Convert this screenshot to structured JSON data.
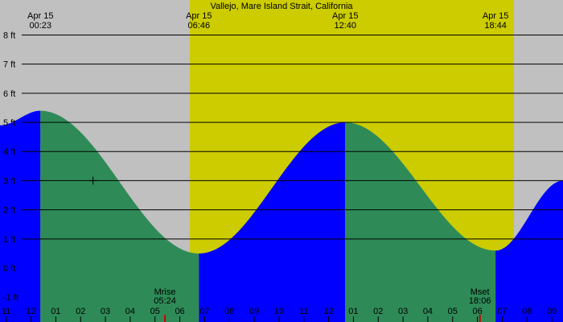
{
  "colors": {
    "night": "#c0c0c0",
    "day": "#cccc00",
    "rising": "#0000ff",
    "falling": "#2e8b57",
    "gridline": "#000000",
    "moon_marker": "#cc0000"
  },
  "chart_data": {
    "type": "area",
    "title": "Vallejo, Mare Island Strait, California",
    "y_unit": "ft",
    "ylim": [
      -1.85,
      9.2
    ],
    "xlim": [
      -1.25,
      21.45
    ],
    "yticks": [
      8,
      7,
      6,
      5,
      4,
      3,
      2,
      1,
      0,
      -1
    ],
    "ytick_labels": [
      "8 ft",
      "7 ft",
      "6 ft",
      "5 ft",
      "4 ft",
      "3 ft",
      "2 ft",
      "1 ft",
      "0 ft",
      "-1 ft"
    ],
    "grid": true,
    "extremes": [
      {
        "type": "high",
        "time": "00:23",
        "hour": 0.38,
        "height": 5.4
      },
      {
        "type": "low",
        "time": "06:46",
        "hour": 6.77,
        "height": 0.5
      },
      {
        "type": "high",
        "time": "12:40",
        "hour": 12.67,
        "height": 5.0
      },
      {
        "type": "low",
        "time": "18:44",
        "hour": 18.73,
        "height": 0.6
      }
    ],
    "series_before": {
      "hour": -1.25,
      "height": 4.9
    },
    "series_after": {
      "hour": 21.45,
      "height": 3.0
    },
    "top_labels": [
      {
        "date": "Apr 15",
        "time": "00:23",
        "hour": 0.38
      },
      {
        "date": "Apr 15",
        "time": "06:46",
        "hour": 6.77
      },
      {
        "date": "Apr 15",
        "time": "12:40",
        "hour": 12.67
      },
      {
        "date": "Apr 15",
        "time": "18:44",
        "hour": 18.73
      }
    ],
    "daylight": {
      "sunrise_hour": 6.4,
      "sunset_hour": 19.47
    },
    "x_tick_labels": [
      "11",
      "12",
      "01",
      "02",
      "03",
      "04",
      "05",
      "06",
      "07",
      "08",
      "09",
      "10",
      "11",
      "12",
      "01",
      "02",
      "03",
      "04",
      "05",
      "06",
      "07",
      "08",
      "09"
    ],
    "x_tick_hours": [
      -1,
      0,
      1,
      2,
      3,
      4,
      5,
      6,
      7,
      8,
      9,
      10,
      11,
      12,
      13,
      14,
      15,
      16,
      17,
      18,
      19,
      20,
      21
    ],
    "moon_events": [
      {
        "label": "Mrise",
        "time": "05:24",
        "hour": 5.4
      },
      {
        "label": "Mset",
        "time": "18:06",
        "hour": 18.1
      }
    ],
    "cursor_mark": {
      "hour": 2.5,
      "height": 3.0
    }
  }
}
